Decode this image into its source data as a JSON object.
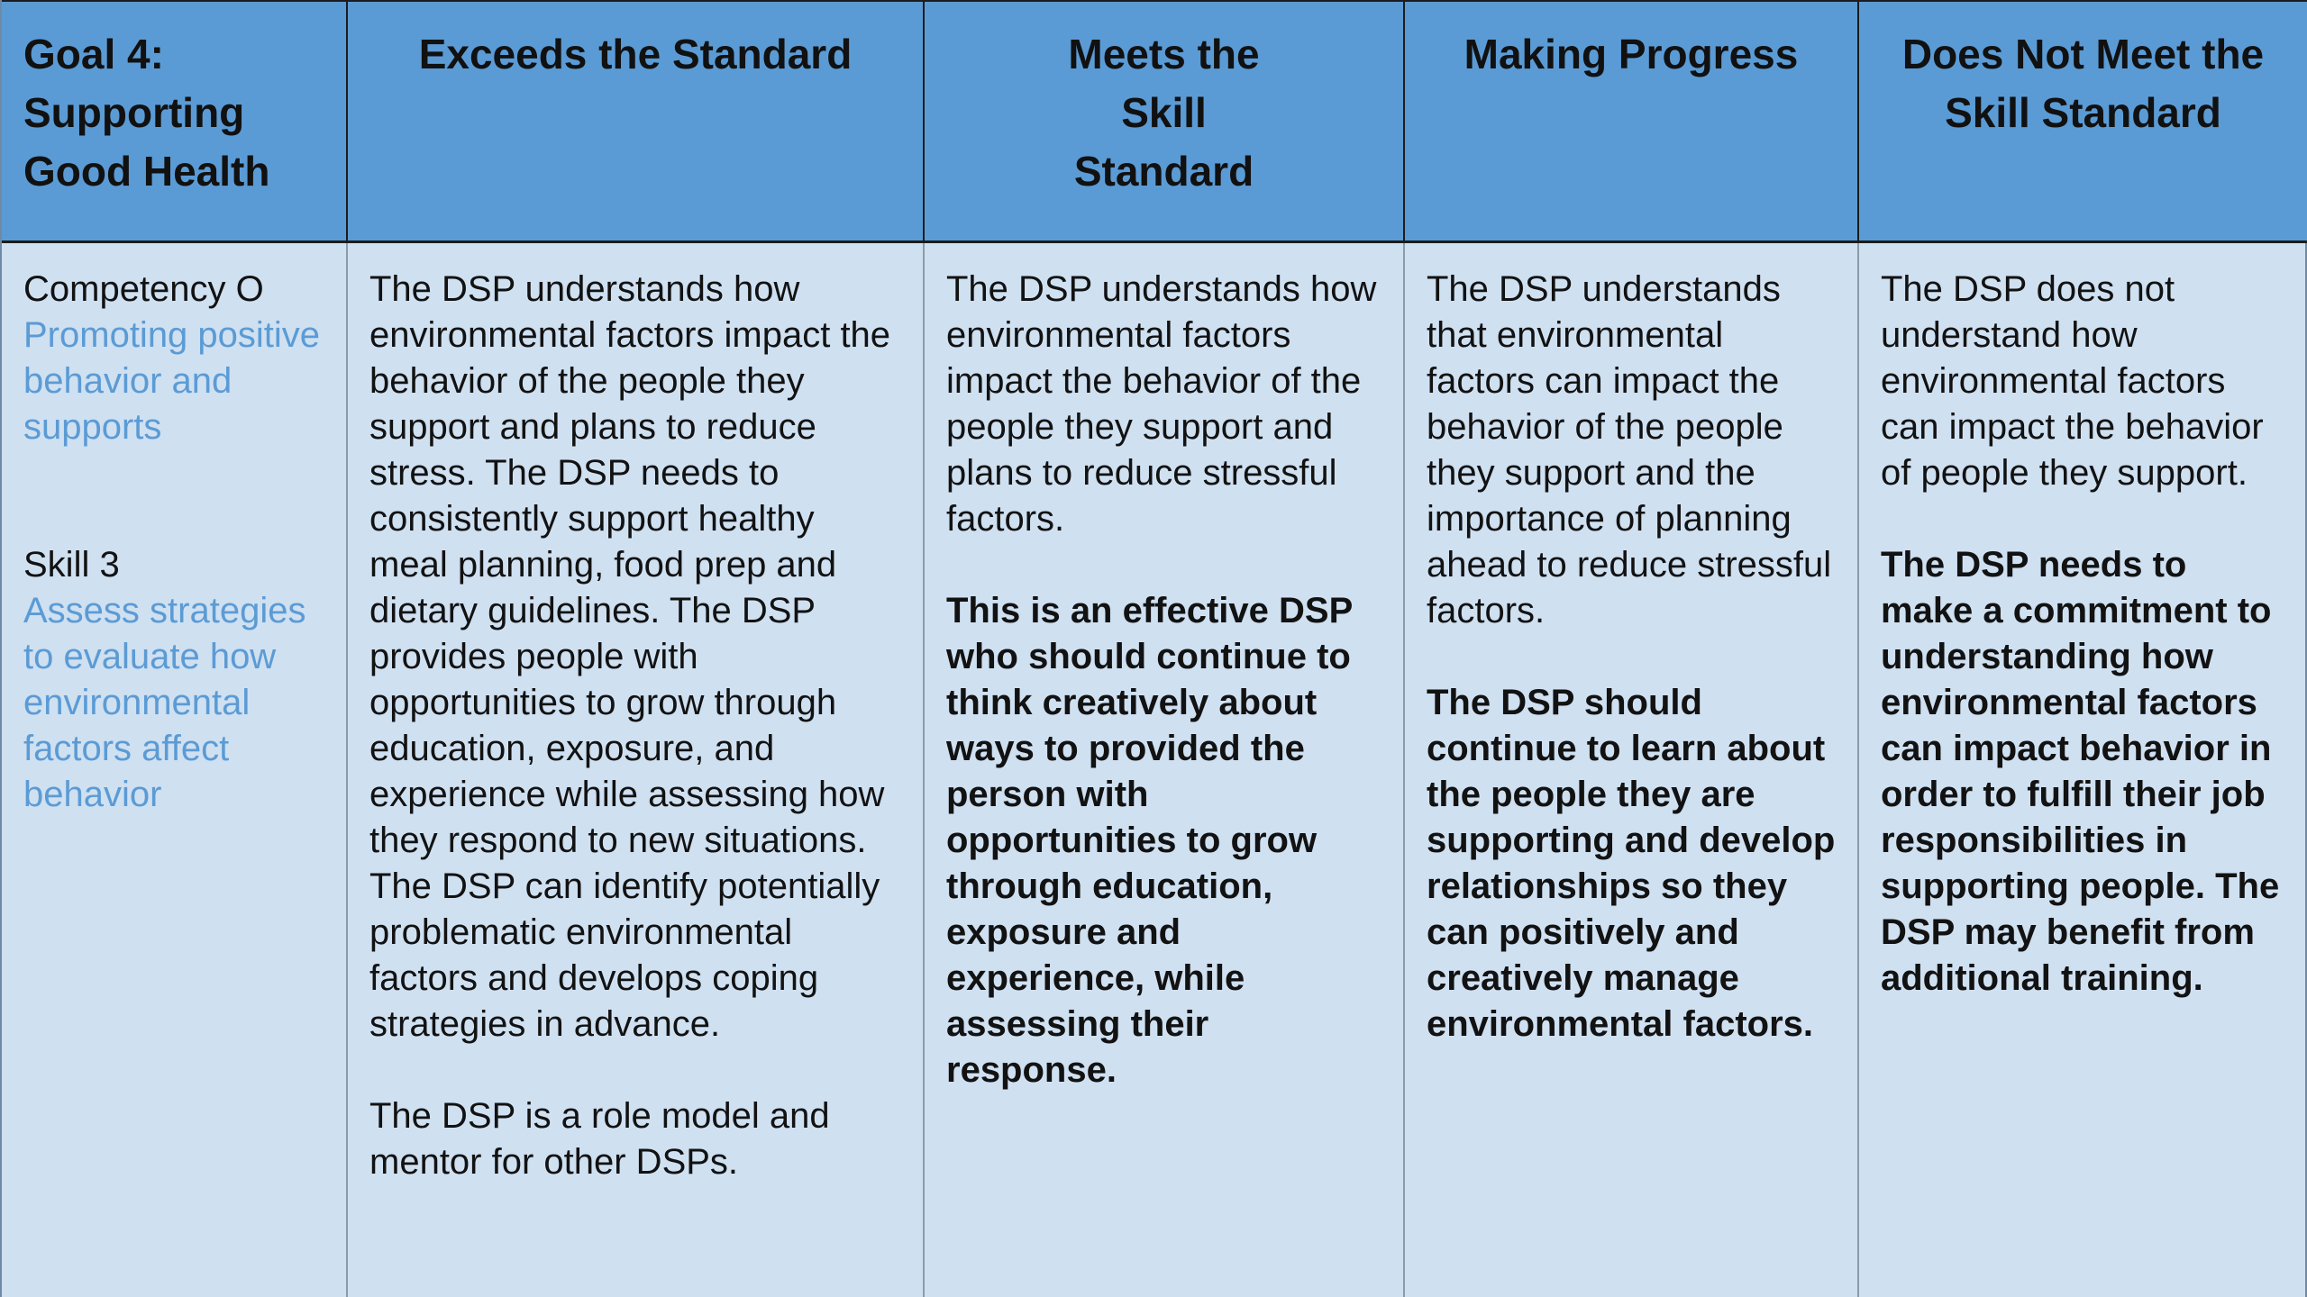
{
  "header": {
    "col1": [
      "Goal 4:",
      "Supporting",
      "Good Health"
    ],
    "col2": [
      "Exceeds the Standard"
    ],
    "col3": [
      "Meets the",
      "Skill",
      "Standard"
    ],
    "col4": [
      "Making Progress"
    ],
    "col5": [
      "Does Not Meet the",
      "Skill Standard"
    ]
  },
  "col1": {
    "competency_label": "Competency O",
    "competency_link": "Promoting positive behavior and supports",
    "skill_label": "Skill 3",
    "skill_link": "Assess strategies to evaluate how environmental factors affect behavior"
  },
  "col2": {
    "p1": "The DSP understands how environmental factors impact the behavior of the people they support and plans to reduce stress. The DSP needs to consistently support healthy meal planning, food prep and dietary guidelines. The DSP provides people with opportunities to grow through education, exposure, and experience while assessing how they respond to new situations. The DSP can identify potentially problematic environmental factors and develops coping strategies in advance.",
    "p2": "The DSP is a role model and mentor for other DSPs."
  },
  "col3": {
    "p1": "The DSP understands how environmental factors impact the behavior of the people they support and plans to reduce stressful factors.",
    "p2": "This is an effective DSP who should continue to think creatively about ways to provided the person with opportunities to grow through education, exposure and experience, while assessing their response."
  },
  "col4": {
    "p1": "The DSP understands that environmental factors can impact the behavior of the people they support and the importance of planning ahead to reduce stressful factors.",
    "p2": "The DSP should continue to learn about the people they are supporting and develop relationships so they can positively and creatively manage environmental factors."
  },
  "col5": {
    "p1": "The DSP does not understand how environmental factors can impact the behavior of people they support.",
    "p2": "The DSP needs to make a commitment to understanding how environmental factors can impact behavior in order to fulfill their job responsibilities in supporting people. The DSP may benefit from additional training."
  },
  "colors": {
    "header_bg": "#5b9bd5",
    "body_bg": "#cfe0f1",
    "link": "#5b9bd5"
  }
}
